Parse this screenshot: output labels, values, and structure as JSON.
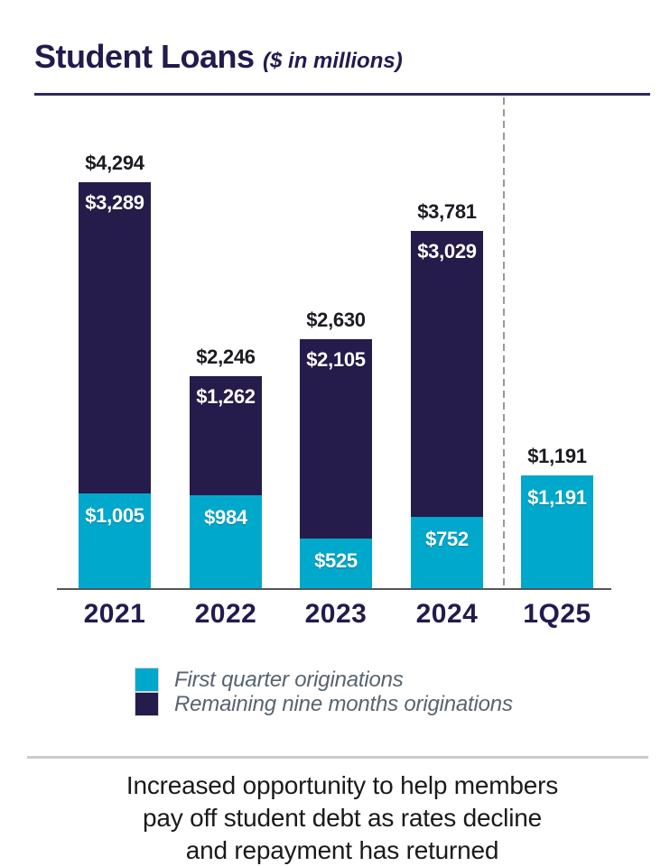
{
  "header": {
    "title": "Student Loans",
    "subtitle": "($ in millions)"
  },
  "chart_data": {
    "type": "bar",
    "stacked": true,
    "title": "Student Loans ($ in millions)",
    "categories": [
      "2021",
      "2022",
      "2023",
      "2024",
      "1Q25"
    ],
    "series": [
      {
        "name": "First quarter originations",
        "color": "#00a8cc",
        "values": [
          1005,
          984,
          525,
          752,
          1191
        ]
      },
      {
        "name": "Remaining nine months originations",
        "color": "#251c4b",
        "values": [
          3289,
          1262,
          2105,
          3029,
          0
        ]
      }
    ],
    "totals": [
      4294,
      2246,
      2630,
      3781,
      1191
    ],
    "total_labels": [
      "$4,294",
      "$2,246",
      "$2,630",
      "$3,781",
      "$1,191"
    ],
    "segment_labels": {
      "first_quarter": [
        "$1,005",
        "$984",
        "$525",
        "$752",
        "$1,191"
      ],
      "remaining": [
        "$3,289",
        "$1,262",
        "$2,105",
        "$3,029",
        ""
      ]
    },
    "ylim": [
      0,
      4294
    ],
    "grid": false,
    "axis_color": "#55565a",
    "separator": {
      "type": "dashed-vertical-line",
      "after_category": "2024",
      "color": "#96989b"
    },
    "legend_position": "bottom-left"
  },
  "footnote": {
    "lines": [
      "Increased opportunity to help members",
      "pay off student debt as rates decline",
      "and repayment has returned"
    ]
  }
}
